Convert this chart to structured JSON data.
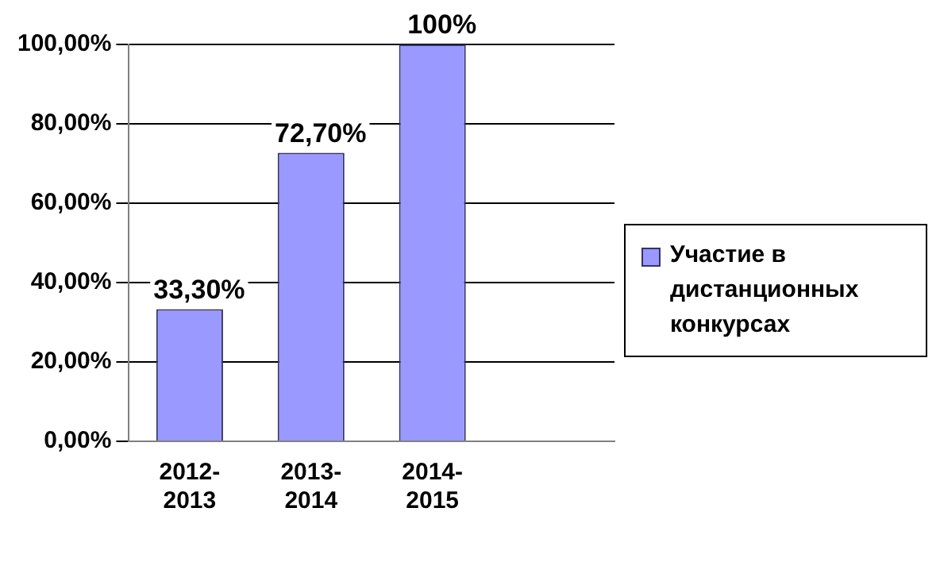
{
  "chart_data": {
    "type": "bar",
    "categories": [
      "2012-2013",
      "2013-2014",
      "2014-2015",
      null
    ],
    "series": [
      {
        "name": "Участие в дистанционных конкурсах",
        "color": "#9999ff",
        "values": [
          33.3,
          72.7,
          100,
          null
        ],
        "value_labels": [
          "33,30%",
          "72,70%",
          "100%",
          null
        ]
      }
    ],
    "ylim": [
      0,
      100
    ],
    "yticks": [
      {
        "value": 0,
        "label": "0,00%"
      },
      {
        "value": 20,
        "label": "20,00%"
      },
      {
        "value": 40,
        "label": "40,00%"
      },
      {
        "value": 60,
        "label": "60,00%"
      },
      {
        "value": 80,
        "label": "80,00%"
      },
      {
        "value": 100,
        "label": "100,00%"
      }
    ],
    "grid": "y",
    "legend": "right"
  }
}
